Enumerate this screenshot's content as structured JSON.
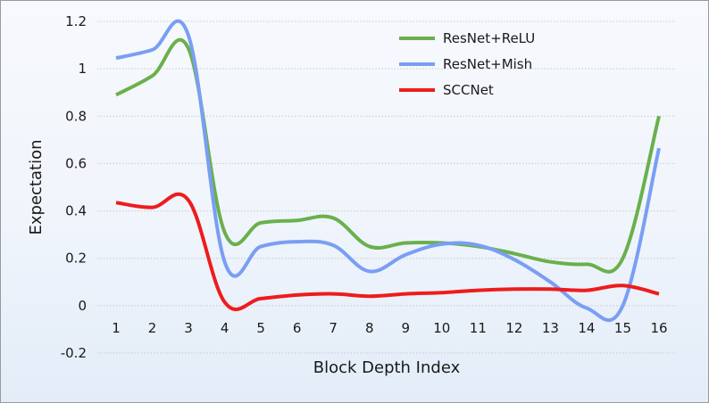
{
  "chart_data": {
    "type": "line",
    "xlabel": "Block Depth Index",
    "ylabel": "Expectation",
    "x": [
      1,
      2,
      3,
      4,
      5,
      6,
      7,
      8,
      9,
      10,
      11,
      12,
      13,
      14,
      15,
      16
    ],
    "ylim": [
      -0.2,
      1.2
    ],
    "yticks": [
      "-0.2",
      "0",
      "0.2",
      "0.4",
      "0.6",
      "0.8",
      "1",
      "1.2"
    ],
    "grid": true,
    "legend_position": "top-right",
    "series": [
      {
        "name": "ResNet+ReLU",
        "color": "#6ab04c",
        "values": [
          0.89,
          0.97,
          1.085,
          0.31,
          0.35,
          0.36,
          0.37,
          0.25,
          0.265,
          0.265,
          0.25,
          0.22,
          0.185,
          0.175,
          0.2,
          0.8
        ]
      },
      {
        "name": "ResNet+Mish",
        "color": "#7a9ef3",
        "values": [
          1.045,
          1.08,
          1.14,
          0.185,
          0.25,
          0.27,
          0.255,
          0.145,
          0.215,
          0.26,
          0.255,
          0.195,
          0.1,
          -0.01,
          0.0,
          0.665
        ]
      },
      {
        "name": "SCCNet",
        "color": "#ee1c1c",
        "values": [
          0.435,
          0.415,
          0.445,
          0.015,
          0.03,
          0.045,
          0.05,
          0.04,
          0.05,
          0.055,
          0.065,
          0.07,
          0.07,
          0.065,
          0.085,
          0.05
        ]
      }
    ]
  }
}
